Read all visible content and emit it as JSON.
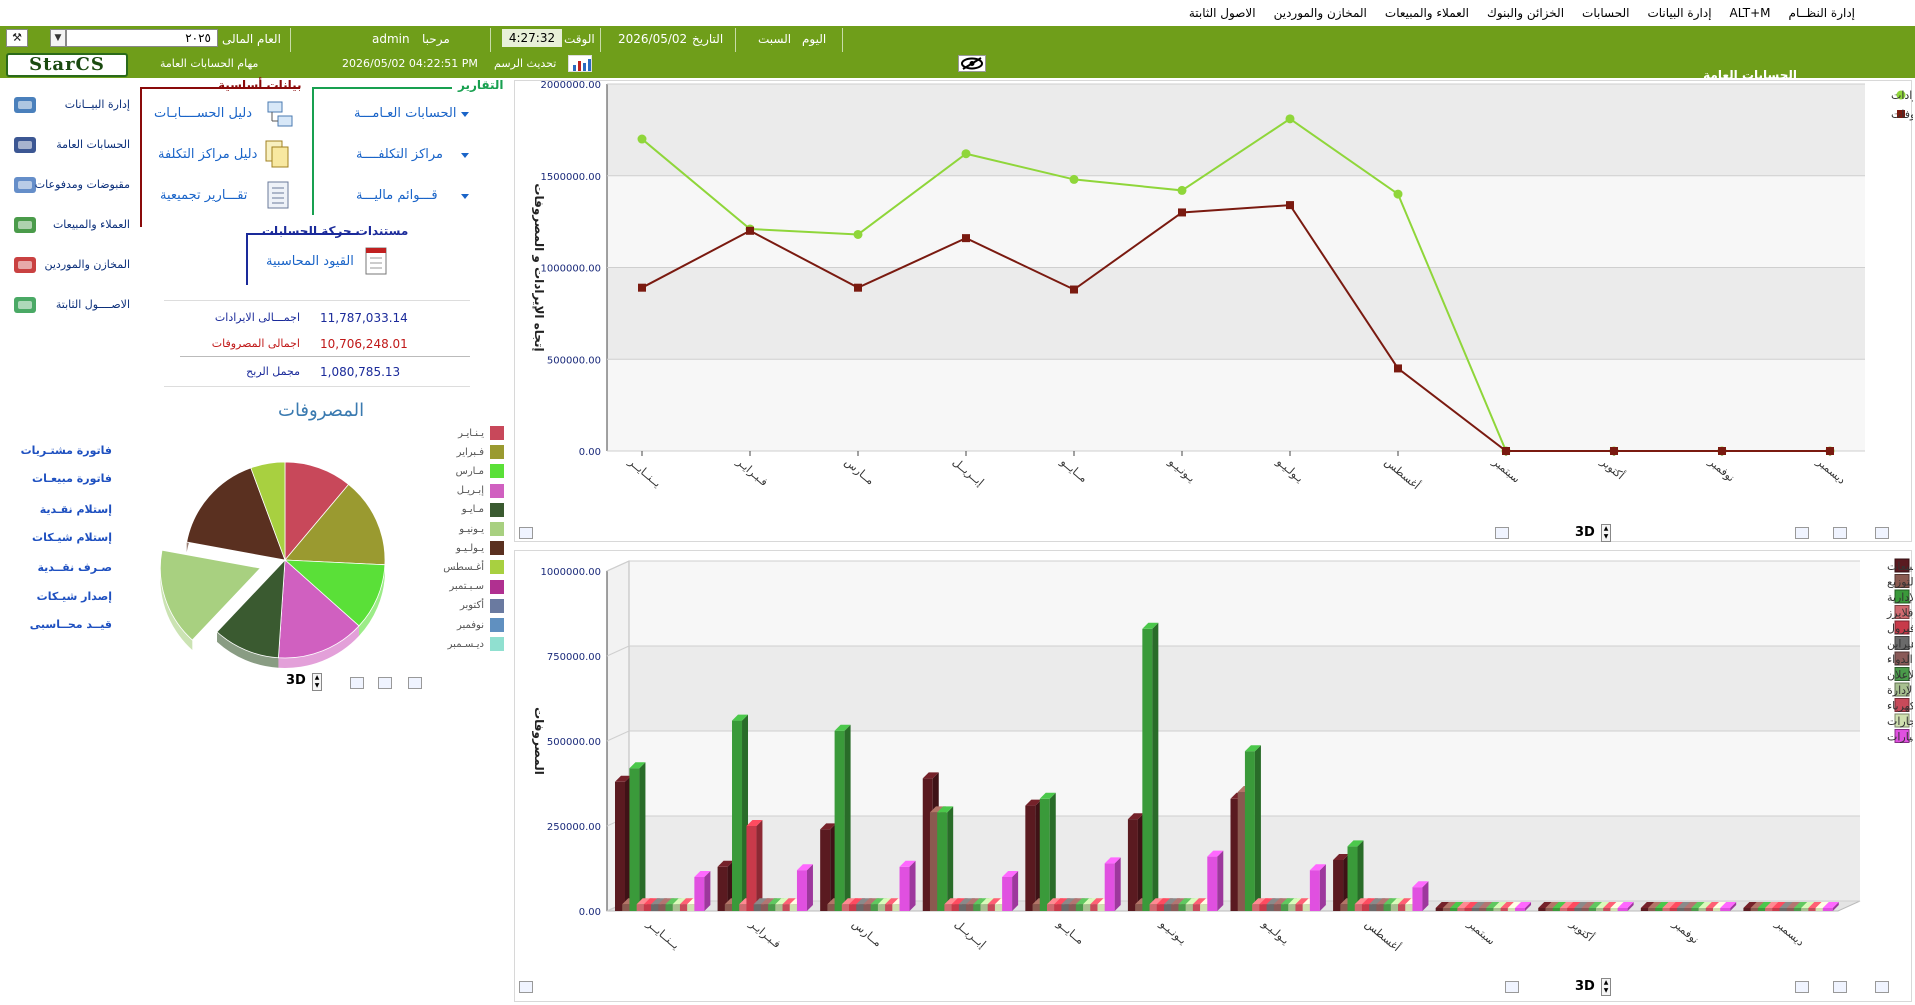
{
  "menu": {
    "items": [
      "إدارة النظــام",
      "ALT+M",
      "إدارة البيانات",
      "الحسابات",
      "الخزائن والبنوك",
      "العملاء والمبيعات",
      "المخازن والموردين",
      "الاصول الثابتة"
    ]
  },
  "infobar": {
    "section_title": "الحسابات العامة",
    "day_label": "اليوم",
    "day_value": "السبت",
    "date_label": "التاريخ",
    "date_value": "2026/05/02",
    "time_label": "الوقت",
    "time_value": "4:27:32",
    "welcome_label": "مرحبا",
    "user": "admin",
    "year_label": "العام المالى",
    "year_value": "٢٠٢٥",
    "tasks_title": "مهام الحسابات العامة",
    "stamp": "2026/05/02 04:22:51 PM",
    "refresh_label": "تحديث الرسم",
    "logo": "StarCS"
  },
  "sidebar": {
    "items": [
      {
        "label": "إدارة البيــانات",
        "icon": "data-icon",
        "color": "#2a6ab0"
      },
      {
        "label": "الحسابات العامة",
        "icon": "ledger-icon",
        "color": "#1a3a80"
      },
      {
        "label": "مقبوضات ومدفوعات",
        "icon": "cash-icon",
        "color": "#4a7ac0"
      },
      {
        "label": "العملاء والمبيعات",
        "icon": "cart-icon",
        "color": "#2a8a2a"
      },
      {
        "label": "المخازن والموردين",
        "icon": "store-icon",
        "color": "#c02020"
      },
      {
        "label": "الاصــــول الثابتة",
        "icon": "assets-icon",
        "color": "#2a9a4a"
      }
    ]
  },
  "groups": {
    "basic_title": "بيانات أساسية",
    "reports_title": "التقارير",
    "docs_title": "مستندات حركة الحسابات",
    "basic_links": [
      "دليل الحســــابـات",
      "دليل مراكز التكلفة",
      "تقـــارير تجميعية"
    ],
    "reports_links": [
      "الحسابات العـامـــة",
      "مراكز التكلفــــة",
      "قـــوائم ماليـــة"
    ],
    "docs_links": [
      "القيود المحاسبية"
    ]
  },
  "totals": {
    "rev_label": "اجمـــالى الايرادات",
    "rev_value": "11,787,033.14",
    "exp_label": "اجمالى المصروفات",
    "exp_value": "10,706,248.01",
    "profit_label": "مجمل الربح",
    "profit_value": "1,080,785.13"
  },
  "quick_links": [
    "فاتورة مشتـريات",
    "فاتورة مبيعـات",
    "إستلام نقـدية",
    "إستلام شيـكات",
    "صـرف نقــدية",
    "إصدار شيـكات",
    "قيــد محــاسبى"
  ],
  "toggle_label": "3D",
  "colors": {
    "green_bar": "#6f9e1a",
    "revenue": "#8fd63a",
    "expense": "#7a1a10"
  },
  "chart_data": [
    {
      "type": "line",
      "categories": [
        "يــنــايــر",
        "فـبـرايـر",
        "مــارس",
        "إبــريــل",
        "مــايــو",
        "يـونـيـو",
        "يـولـيـو",
        "أغسطس",
        "سبتمبر",
        "أكتوبر",
        "نوفمبر",
        "ديسمبر"
      ],
      "series": [
        {
          "name": "الايـــرادات",
          "color": "#8fd63a",
          "values": [
            1700000,
            1210000,
            1180000,
            1620000,
            1480000,
            1420000,
            1810000,
            1400000,
            0,
            0,
            0,
            0
          ]
        },
        {
          "name": "المصروفات",
          "color": "#7a1a10",
          "values": [
            890000,
            1200000,
            890000,
            1160000,
            880000,
            1300000,
            1340000,
            450000,
            0,
            0,
            0,
            0
          ]
        }
      ],
      "ylabel": "إتجاه الإيرادات و المصروفات",
      "ylim": [
        0,
        2000000
      ],
      "yticks": [
        "0.00",
        "500000.00",
        "1000000.00",
        "1500000.00",
        "2000000.00"
      ],
      "grid": true,
      "legend": "top-right"
    },
    {
      "type": "pie",
      "title": "المصروفات",
      "slices": [
        {
          "label": "يـنـايـر",
          "value": 890000,
          "color": "#c8485a"
        },
        {
          "label": "فـبراير",
          "value": 1200000,
          "color": "#9a9a30"
        },
        {
          "label": "مـارس",
          "value": 890000,
          "color": "#5ae038"
        },
        {
          "label": "إبـريـل",
          "value": 1160000,
          "color": "#d060c0"
        },
        {
          "label": "مـايـو",
          "value": 880000,
          "color": "#3a5a30"
        },
        {
          "label": "يـونيـو",
          "value": 1300000,
          "color": "#a8d080"
        },
        {
          "label": "يـولـيـو",
          "value": 1340000,
          "color": "#5a3020"
        },
        {
          "label": "أغـسطس",
          "value": 450000,
          "color": "#a8d040"
        },
        {
          "label": "سـبـتمبر",
          "value": 0,
          "color": "#b03090"
        },
        {
          "label": "أكتوبر",
          "value": 0,
          "color": "#6a7aa0"
        },
        {
          "label": "نوفمبر",
          "value": 0,
          "color": "#6090c0"
        },
        {
          "label": "ديـسـمبر",
          "value": 0,
          "color": "#90e0d0"
        }
      ],
      "legend": "right"
    },
    {
      "type": "bar",
      "categories": [
        "يــنــايــر",
        "فـبـرايـر",
        "مــارس",
        "إبــريــل",
        "مــايــو",
        "يـونـيـو",
        "يـولـيـو",
        "أغسطس",
        "سبتمبر",
        "أكتوبر",
        "نوفمبر",
        "ديسمبر"
      ],
      "ylabel": "المصروفات",
      "ylim": [
        0,
        1000000
      ],
      "yticks": [
        "0.00",
        "250000.00",
        "500000.00",
        "750000.00",
        "1000000.00"
      ],
      "series": [
        {
          "name": "تكلفة المبيعات",
          "color": "#5a1a20",
          "values": [
            380000,
            130000,
            240000,
            390000,
            310000,
            270000,
            330000,
            150000,
            0,
            0,
            0,
            0
          ]
        },
        {
          "name": "مصروفات البيع والتوزيع",
          "color": "#8a5a50",
          "values": [
            20000,
            20000,
            20000,
            290000,
            20000,
            20000,
            350000,
            20000,
            0,
            0,
            0,
            0
          ]
        },
        {
          "name": "المصروفات الإدارية",
          "color": "#3a9a3a",
          "values": [
            420000,
            560000,
            530000,
            290000,
            330000,
            830000,
            470000,
            190000,
            0,
            0,
            0,
            0
          ]
        },
        {
          "name": "طباعة وبانرات وفلايرز",
          "color": "#d06a70",
          "values": [
            20000,
            20000,
            20000,
            20000,
            20000,
            20000,
            20000,
            20000,
            0,
            0,
            0,
            0
          ]
        },
        {
          "name": "مصروفات تصنيع دوافيرول",
          "color": "#c83a4a",
          "values": [
            20000,
            250000,
            20000,
            20000,
            20000,
            20000,
            20000,
            20000,
            0,
            0,
            0,
            0
          ]
        },
        {
          "name": "مصروفات تصنيع مكملات هيرابن",
          "color": "#6a6a6a",
          "values": [
            20000,
            20000,
            20000,
            20000,
            20000,
            20000,
            20000,
            20000,
            0,
            0,
            0,
            0
          ]
        },
        {
          "name": "مصروفات هيئة الدواء",
          "color": "#8a5a58",
          "values": [
            20000,
            20000,
            20000,
            20000,
            20000,
            20000,
            20000,
            20000,
            0,
            0,
            0,
            0
          ]
        },
        {
          "name": "مصروفات الدعاية والإعلان",
          "color": "#4a9a4a",
          "values": [
            20000,
            20000,
            20000,
            20000,
            20000,
            20000,
            20000,
            20000,
            0,
            0,
            0,
            0
          ]
        },
        {
          "name": "سفر الإدارة",
          "color": "#a8c090",
          "values": [
            20000,
            20000,
            20000,
            20000,
            20000,
            20000,
            20000,
            20000,
            0,
            0,
            0,
            0
          ]
        },
        {
          "name": "م كهرباء",
          "color": "#c84a5a",
          "values": [
            20000,
            20000,
            20000,
            20000,
            20000,
            20000,
            20000,
            20000,
            0,
            0,
            0,
            0
          ]
        },
        {
          "name": "ايجارات",
          "color": "#d0e0b0",
          "values": [
            20000,
            20000,
            20000,
            20000,
            20000,
            20000,
            20000,
            20000,
            0,
            0,
            0,
            0
          ]
        },
        {
          "name": "م سيارات",
          "color": "#e050e0",
          "values": [
            100000,
            120000,
            130000,
            100000,
            140000,
            160000,
            120000,
            70000,
            0,
            0,
            0,
            0
          ]
        }
      ],
      "grid": true,
      "legend": "right"
    }
  ]
}
